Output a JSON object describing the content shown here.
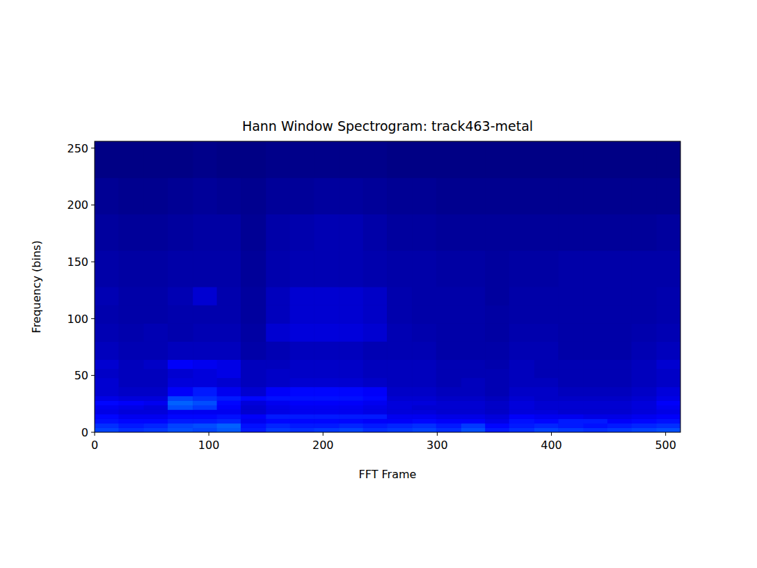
{
  "chart_data": {
    "type": "heatmap",
    "title": "Hann Window Spectrogram: track463-metal",
    "x_label": "FFT Frame",
    "y_label": "Frequency (bins)",
    "xlim": [
      0,
      513
    ],
    "ylim": [
      0,
      256
    ],
    "xticks": [
      0,
      100,
      200,
      300,
      400,
      500
    ],
    "yticks": [
      0,
      50,
      100,
      150,
      200,
      250
    ],
    "x_edges": [
      0,
      21,
      43,
      64,
      86,
      107,
      128,
      150,
      171,
      192,
      214,
      235,
      256,
      278,
      299,
      321,
      342,
      363,
      385,
      406,
      428,
      449,
      470,
      492,
      513
    ],
    "y_edges": [
      0,
      4,
      8,
      12,
      16,
      20,
      24,
      28,
      32,
      40,
      48,
      56,
      64,
      80,
      96,
      112,
      128,
      160,
      192,
      224,
      256
    ],
    "color_range": [
      0,
      200
    ],
    "cells": [
      [
        38,
        34,
        36,
        40,
        38,
        42,
        30,
        36,
        34,
        36,
        38,
        34,
        36,
        38,
        34,
        40,
        30,
        34,
        38,
        36,
        34,
        36,
        38,
        40
      ],
      [
        34,
        30,
        32,
        38,
        40,
        44,
        28,
        32,
        30,
        30,
        32,
        30,
        32,
        34,
        30,
        36,
        26,
        30,
        32,
        30,
        28,
        30,
        32,
        34
      ],
      [
        28,
        26,
        26,
        30,
        30,
        32,
        22,
        26,
        26,
        26,
        26,
        24,
        24,
        26,
        24,
        24,
        20,
        28,
        26,
        30,
        30,
        24,
        26,
        28
      ],
      [
        26,
        22,
        22,
        26,
        26,
        28,
        24,
        30,
        30,
        30,
        30,
        30,
        22,
        22,
        20,
        20,
        18,
        24,
        22,
        22,
        20,
        20,
        22,
        24
      ],
      [
        20,
        18,
        18,
        22,
        22,
        22,
        16,
        20,
        22,
        22,
        22,
        20,
        18,
        18,
        16,
        16,
        14,
        18,
        18,
        16,
        16,
        16,
        18,
        20
      ],
      [
        22,
        20,
        18,
        40,
        36,
        24,
        16,
        20,
        22,
        22,
        22,
        20,
        18,
        16,
        16,
        16,
        14,
        18,
        16,
        16,
        16,
        16,
        18,
        22
      ],
      [
        26,
        24,
        22,
        44,
        40,
        26,
        18,
        22,
        24,
        24,
        24,
        22,
        18,
        18,
        16,
        16,
        14,
        18,
        16,
        16,
        16,
        16,
        18,
        24
      ],
      [
        20,
        18,
        18,
        38,
        34,
        30,
        26,
        28,
        28,
        28,
        28,
        26,
        16,
        16,
        14,
        14,
        12,
        16,
        14,
        14,
        14,
        14,
        16,
        20
      ],
      [
        16,
        14,
        14,
        24,
        30,
        22,
        16,
        24,
        26,
        26,
        26,
        24,
        14,
        14,
        12,
        12,
        10,
        14,
        14,
        12,
        12,
        12,
        14,
        18
      ],
      [
        16,
        12,
        12,
        18,
        18,
        16,
        12,
        14,
        16,
        16,
        16,
        14,
        12,
        12,
        10,
        12,
        10,
        12,
        12,
        10,
        10,
        10,
        12,
        14
      ],
      [
        14,
        12,
        12,
        16,
        18,
        20,
        12,
        14,
        14,
        14,
        14,
        12,
        12,
        12,
        10,
        10,
        10,
        12,
        10,
        10,
        10,
        10,
        12,
        14
      ],
      [
        16,
        12,
        14,
        24,
        22,
        20,
        12,
        12,
        14,
        14,
        14,
        12,
        12,
        12,
        10,
        10,
        9,
        12,
        10,
        10,
        10,
        10,
        12,
        16
      ],
      [
        12,
        10,
        10,
        12,
        12,
        12,
        8,
        10,
        12,
        12,
        12,
        10,
        10,
        10,
        8,
        8,
        8,
        10,
        10,
        8,
        8,
        8,
        10,
        12
      ],
      [
        10,
        9,
        10,
        9,
        10,
        10,
        7,
        16,
        18,
        18,
        18,
        16,
        10,
        9,
        8,
        8,
        7,
        9,
        9,
        8,
        8,
        8,
        9,
        10
      ],
      [
        9,
        8,
        8,
        9,
        9,
        9,
        6,
        12,
        16,
        16,
        16,
        14,
        9,
        8,
        8,
        8,
        7,
        8,
        8,
        8,
        8,
        8,
        8,
        9
      ],
      [
        10,
        8,
        8,
        10,
        16,
        9,
        6,
        12,
        16,
        16,
        16,
        14,
        9,
        8,
        8,
        8,
        6,
        8,
        8,
        8,
        8,
        8,
        8,
        9
      ],
      [
        8,
        7,
        7,
        8,
        8,
        8,
        5,
        9,
        10,
        10,
        10,
        9,
        8,
        8,
        7,
        7,
        6,
        7,
        7,
        8,
        8,
        8,
        8,
        8
      ],
      [
        6,
        5,
        5,
        6,
        7,
        7,
        4,
        8,
        9,
        10,
        10,
        8,
        6,
        6,
        5,
        5,
        5,
        5,
        5,
        5,
        5,
        5,
        5,
        6
      ],
      [
        4,
        3,
        3,
        4,
        5,
        4,
        3,
        5,
        5,
        6,
        6,
        5,
        4,
        4,
        3,
        3,
        3,
        3,
        3,
        3,
        3,
        3,
        3,
        3
      ],
      [
        1,
        1,
        1,
        1,
        2,
        1,
        1,
        2,
        2,
        2,
        2,
        2,
        1,
        1,
        1,
        1,
        1,
        1,
        1,
        1,
        1,
        1,
        1,
        1
      ]
    ]
  }
}
